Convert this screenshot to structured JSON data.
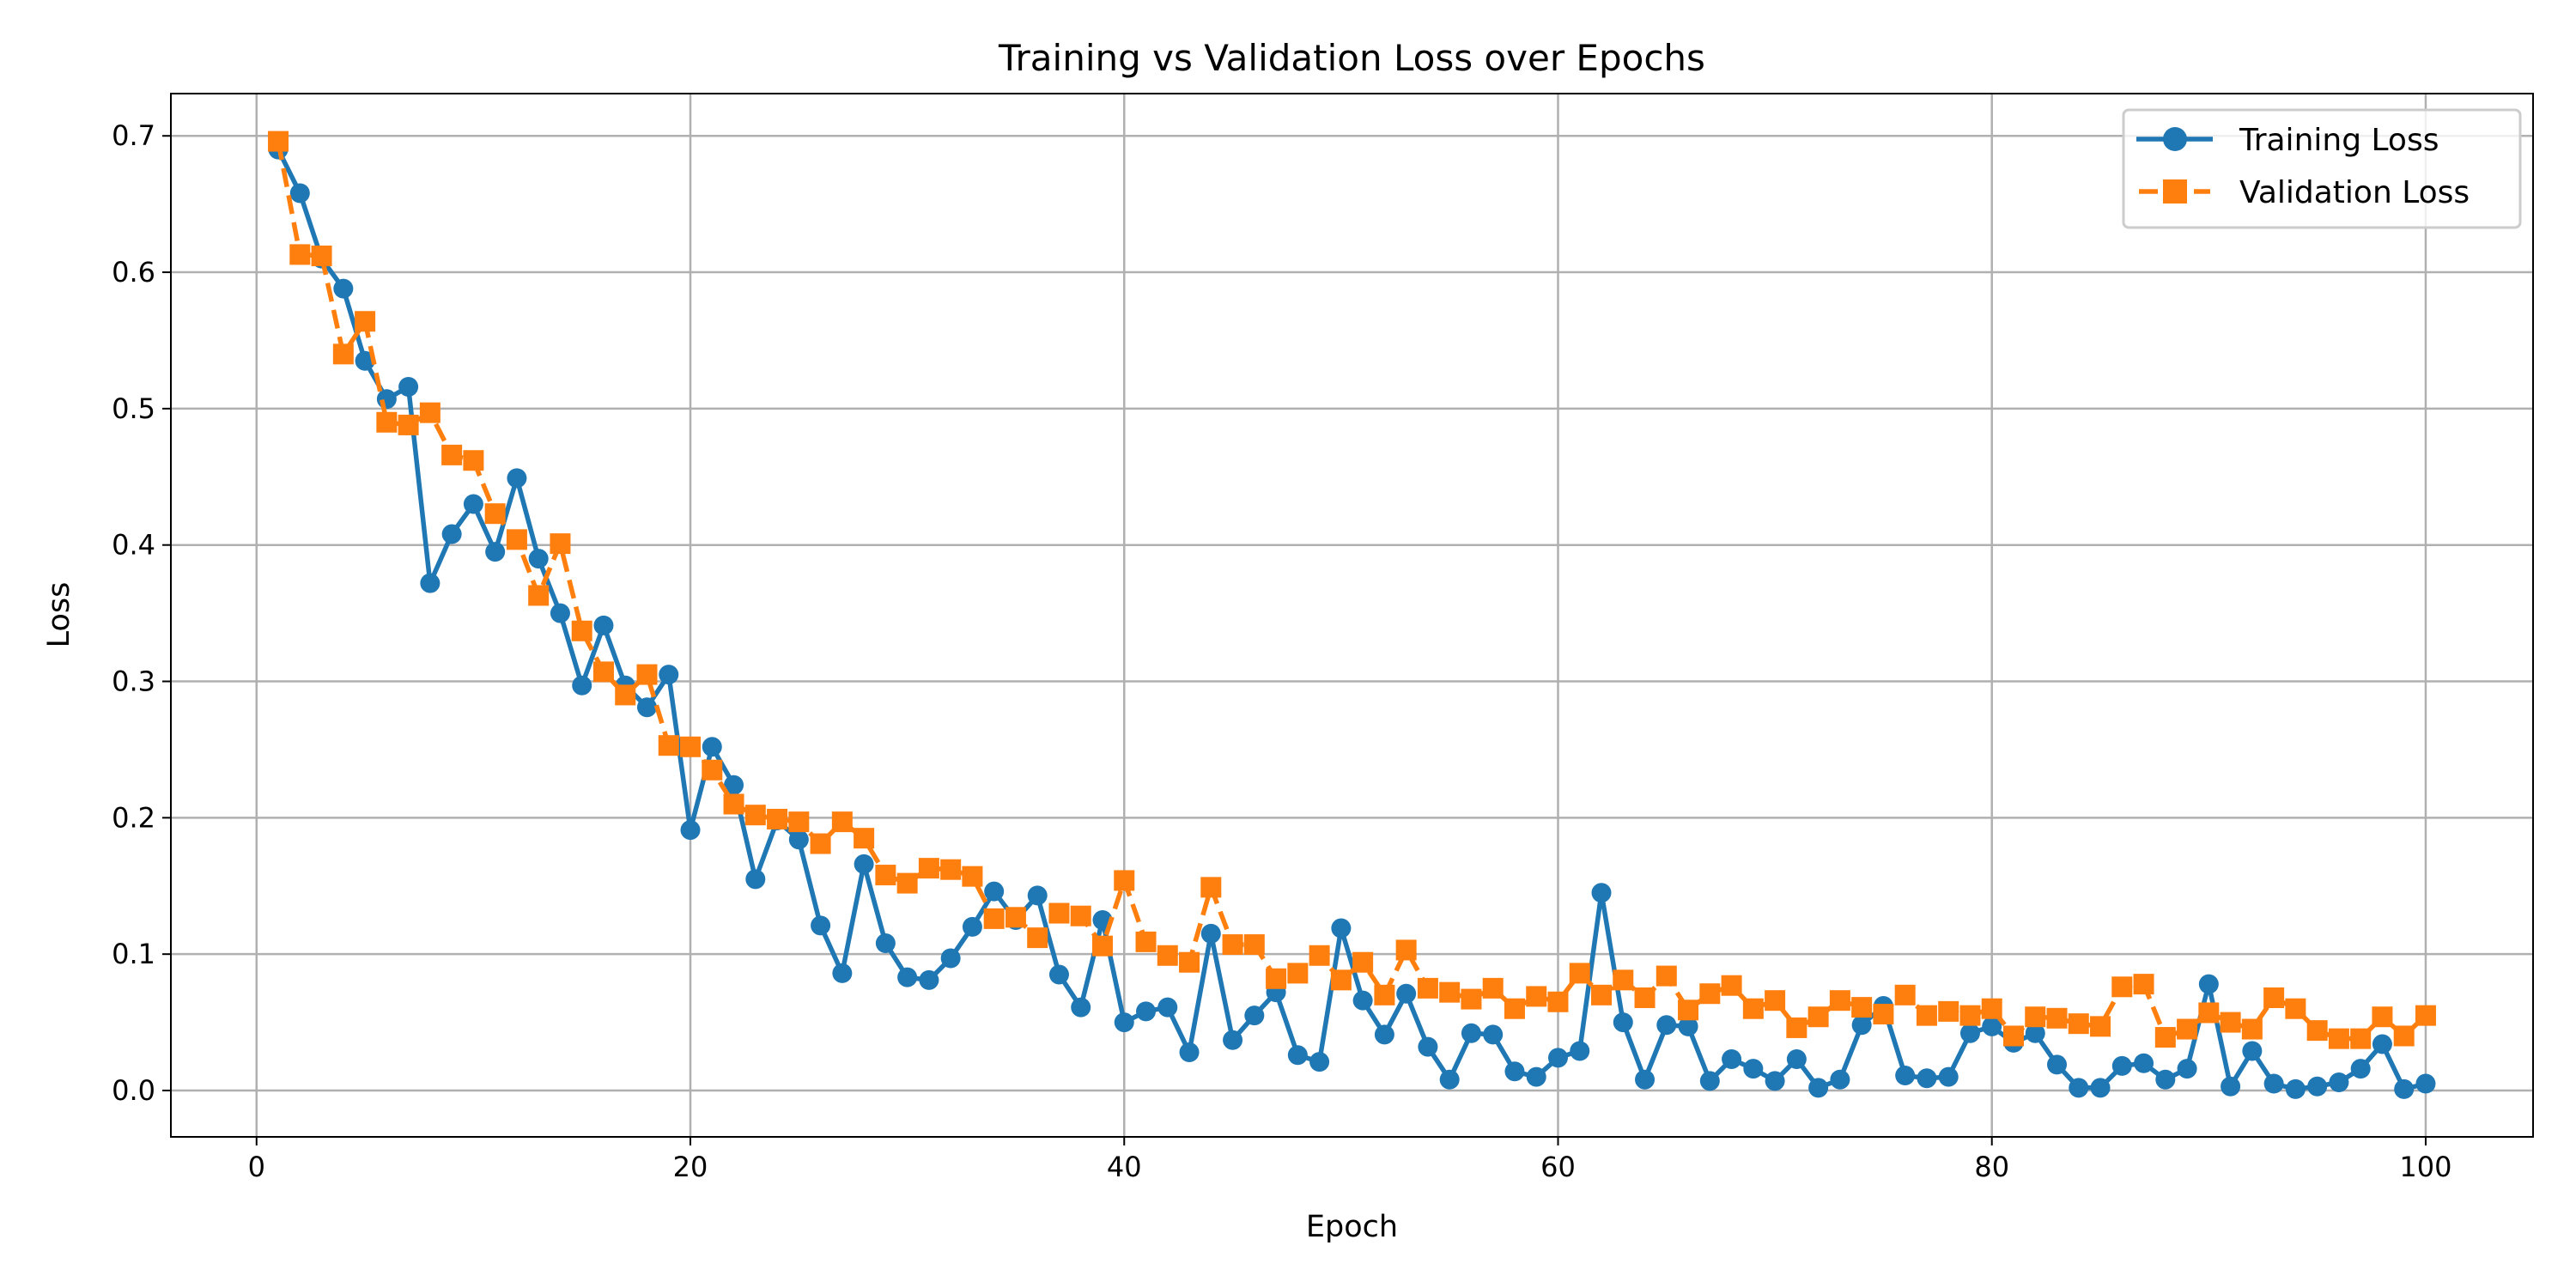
{
  "chart_data": {
    "type": "line",
    "title": "Training vs Validation Loss over Epochs",
    "xlabel": "Epoch",
    "ylabel": "Loss",
    "xlim": [
      -3.95,
      104.95
    ],
    "ylim": [
      -0.034,
      0.731
    ],
    "xticks": [
      0,
      20,
      40,
      60,
      80,
      100
    ],
    "yticks": [
      0.0,
      0.1,
      0.2,
      0.3,
      0.4,
      0.5,
      0.6,
      0.7
    ],
    "xtick_labels": [
      "0",
      "20",
      "40",
      "60",
      "80",
      "100"
    ],
    "ytick_labels": [
      "0.0",
      "0.1",
      "0.2",
      "0.3",
      "0.4",
      "0.5",
      "0.6",
      "0.7"
    ],
    "grid": true,
    "legend_position": "top-right",
    "x": [
      1,
      2,
      3,
      4,
      5,
      6,
      7,
      8,
      9,
      10,
      11,
      12,
      13,
      14,
      15,
      16,
      17,
      18,
      19,
      20,
      21,
      22,
      23,
      24,
      25,
      26,
      27,
      28,
      29,
      30,
      31,
      32,
      33,
      34,
      35,
      36,
      37,
      38,
      39,
      40,
      41,
      42,
      43,
      44,
      45,
      46,
      47,
      48,
      49,
      50,
      51,
      52,
      53,
      54,
      55,
      56,
      57,
      58,
      59,
      60,
      61,
      62,
      63,
      64,
      65,
      66,
      67,
      68,
      69,
      70,
      71,
      72,
      73,
      74,
      75,
      76,
      77,
      78,
      79,
      80,
      81,
      82,
      83,
      84,
      85,
      86,
      87,
      88,
      89,
      90,
      91,
      92,
      93,
      94,
      95,
      96,
      97,
      98,
      99,
      100
    ],
    "series": [
      {
        "name": "Training Loss",
        "color": "#1f77b4",
        "marker": "circle",
        "linestyle": "solid",
        "values": [
          0.69,
          0.658,
          0.61,
          0.588,
          0.535,
          0.507,
          0.516,
          0.372,
          0.408,
          0.43,
          0.395,
          0.449,
          0.39,
          0.35,
          0.297,
          0.341,
          0.297,
          0.281,
          0.305,
          0.191,
          0.252,
          0.224,
          0.155,
          0.198,
          0.184,
          0.121,
          0.086,
          0.166,
          0.108,
          0.083,
          0.081,
          0.097,
          0.12,
          0.146,
          0.125,
          0.143,
          0.085,
          0.061,
          0.125,
          0.05,
          0.058,
          0.061,
          0.028,
          0.115,
          0.037,
          0.055,
          0.072,
          0.026,
          0.021,
          0.119,
          0.066,
          0.041,
          0.071,
          0.032,
          0.008,
          0.042,
          0.041,
          0.014,
          0.01,
          0.024,
          0.029,
          0.145,
          0.05,
          0.008,
          0.048,
          0.047,
          0.007,
          0.023,
          0.016,
          0.007,
          0.023,
          0.002,
          0.008,
          0.048,
          0.062,
          0.011,
          0.009,
          0.01,
          0.042,
          0.047,
          0.035,
          0.042,
          0.019,
          0.002,
          0.002,
          0.018,
          0.02,
          0.008,
          0.016,
          0.078,
          0.003,
          0.029,
          0.005,
          0.001,
          0.003,
          0.006,
          0.016,
          0.034,
          0.001,
          0.005
        ]
      },
      {
        "name": "Validation Loss",
        "color": "#ff7f0e",
        "marker": "square",
        "linestyle": "dashed",
        "values": [
          0.696,
          0.613,
          0.612,
          0.54,
          0.564,
          0.49,
          0.488,
          0.497,
          0.466,
          0.462,
          0.423,
          0.404,
          0.363,
          0.401,
          0.337,
          0.307,
          0.29,
          0.305,
          0.253,
          0.252,
          0.235,
          0.21,
          0.202,
          0.199,
          0.197,
          0.181,
          0.197,
          0.185,
          0.158,
          0.152,
          0.163,
          0.162,
          0.157,
          0.126,
          0.127,
          0.112,
          0.13,
          0.128,
          0.106,
          0.154,
          0.109,
          0.099,
          0.094,
          0.149,
          0.107,
          0.107,
          0.082,
          0.086,
          0.099,
          0.081,
          0.094,
          0.07,
          0.103,
          0.075,
          0.072,
          0.067,
          0.075,
          0.06,
          0.069,
          0.065,
          0.086,
          0.07,
          0.081,
          0.068,
          0.084,
          0.059,
          0.071,
          0.077,
          0.06,
          0.066,
          0.046,
          0.054,
          0.066,
          0.061,
          0.056,
          0.07,
          0.055,
          0.058,
          0.055,
          0.06,
          0.04,
          0.054,
          0.053,
          0.049,
          0.047,
          0.076,
          0.078,
          0.039,
          0.045,
          0.057,
          0.05,
          0.045,
          0.068,
          0.06,
          0.044,
          0.038,
          0.038,
          0.054,
          0.04,
          0.055
        ]
      }
    ]
  }
}
